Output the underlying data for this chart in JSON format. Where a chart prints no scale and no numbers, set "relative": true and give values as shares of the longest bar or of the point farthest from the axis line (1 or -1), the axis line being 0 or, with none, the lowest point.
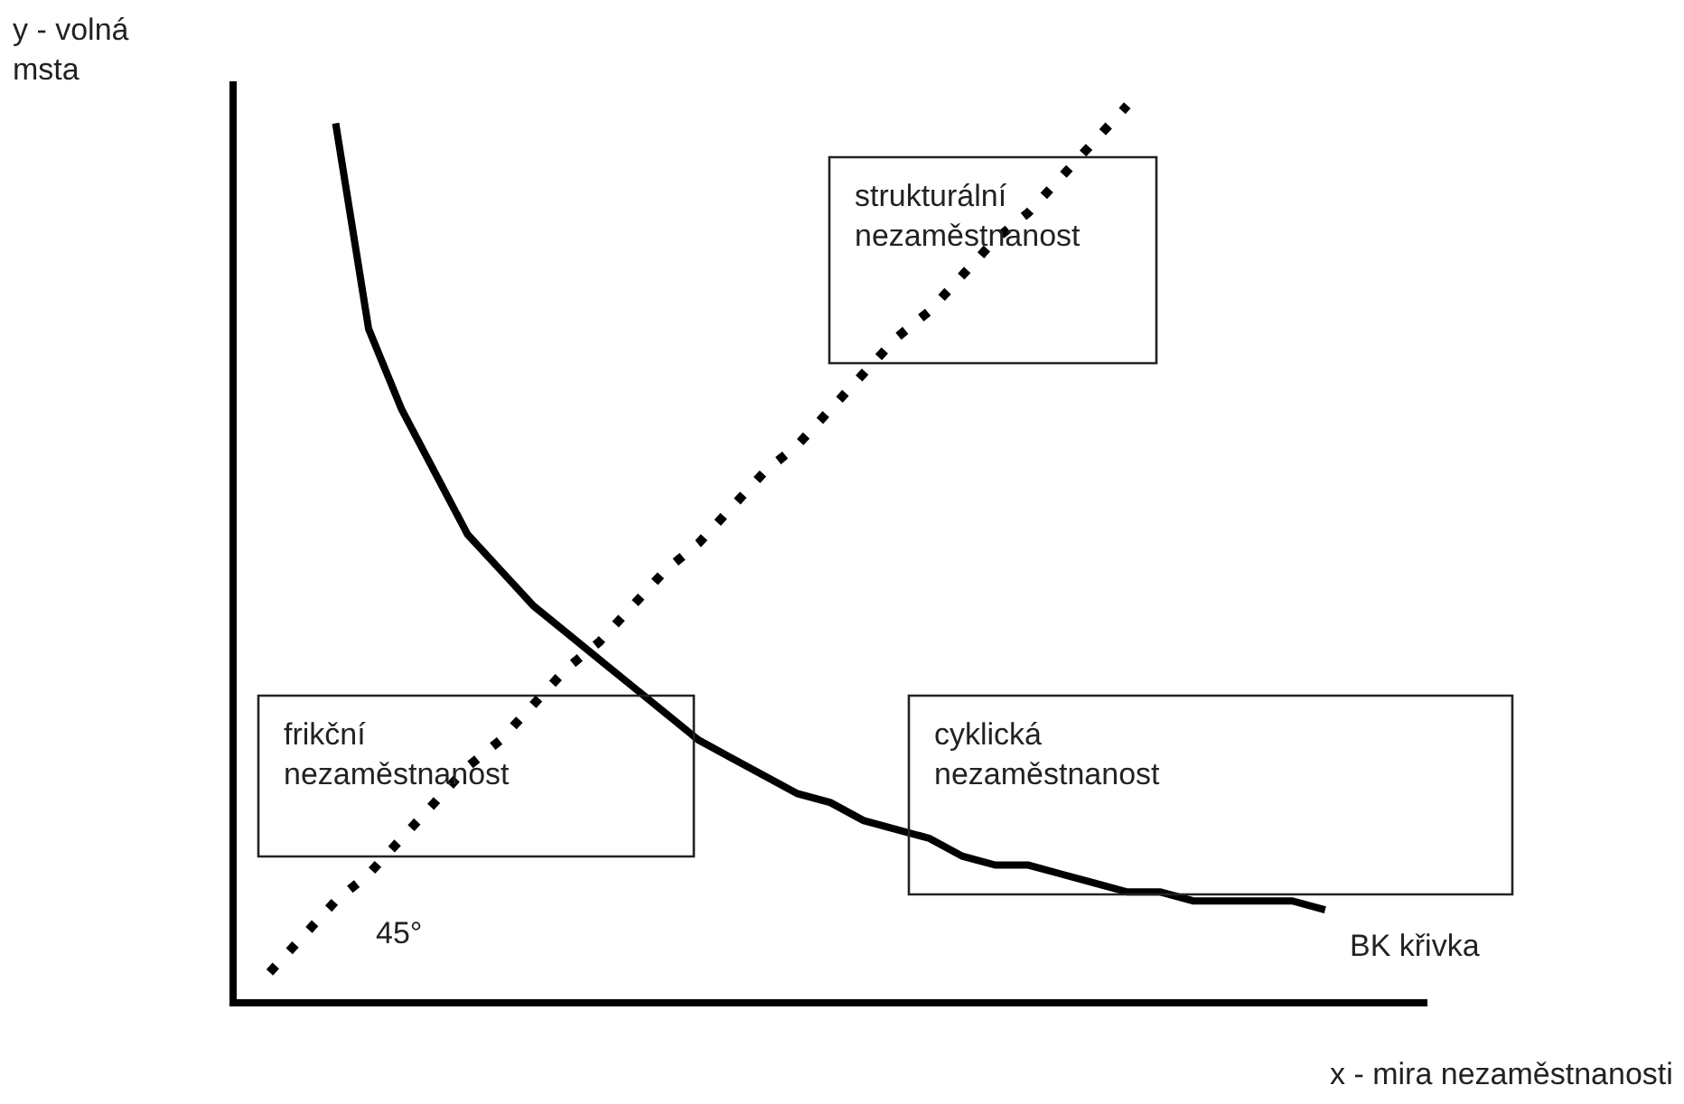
{
  "chart_data": {
    "type": "line",
    "relative": true,
    "xlabel": "x - mira nezaměstnanosti",
    "ylabel": "y - volná\nmsta",
    "grid": false,
    "legend": false,
    "tick_labels": false,
    "marker": "none",
    "categories": [
      null,
      null,
      null,
      null,
      null,
      null,
      null,
      null,
      null,
      null,
      null,
      null,
      null,
      null,
      null,
      null,
      null,
      null,
      null,
      null,
      null,
      null,
      null,
      null,
      null,
      null,
      null,
      null,
      null,
      null,
      null,
      null,
      null
    ],
    "series": [
      {
        "name": "BK křivka",
        "color": "#000000",
        "line_style": "solid",
        "values": [
          null,
          null,
          0.98,
          0.75,
          0.66,
          0.59,
          0.52,
          0.48,
          0.44,
          0.41,
          0.38,
          0.35,
          0.32,
          0.29,
          0.27,
          0.25,
          0.23,
          0.22,
          0.2,
          0.19,
          0.18,
          0.16,
          0.15,
          0.15,
          0.14,
          0.13,
          0.12,
          0.12,
          0.11,
          0.11,
          0.11,
          0.11,
          0.1
        ]
      },
      {
        "color": "#000000",
        "line_style": "dotted",
        "values": [
          0.03,
          0.07,
          0.11,
          0.14,
          0.18,
          0.22,
          0.26,
          0.29,
          0.33,
          0.37,
          0.4,
          0.44,
          0.48,
          0.51,
          0.55,
          0.59,
          0.62,
          0.66,
          0.7,
          0.74,
          0.77,
          0.81,
          0.85,
          0.88,
          0.92,
          0.96,
          1.0,
          null,
          null,
          null,
          null,
          null,
          null
        ]
      }
    ],
    "annotations": [
      "strukturální\nnezaměstnanost",
      "frikční\nnezaměstnanost",
      "cyklická\nnezaměstnanost",
      "45°"
    ]
  }
}
